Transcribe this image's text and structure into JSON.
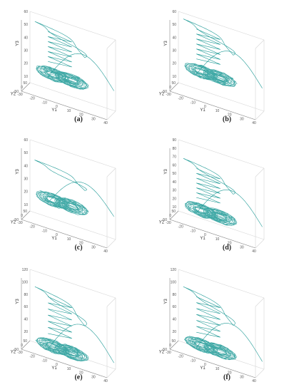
{
  "chart_data": [
    {
      "type": "line",
      "id": "a",
      "caption": "(a)",
      "xlabel": "Y1",
      "ylabel": "Y2",
      "zlabel": "Y3",
      "x_ticks": [
        "-30",
        "-20",
        "-10",
        "0",
        "10",
        "20",
        "30",
        "40"
      ],
      "y_ticks": [
        "-50",
        "0",
        "50"
      ],
      "z_ticks": [
        "10",
        "20",
        "30",
        "40",
        "50",
        "60"
      ],
      "zlim": [
        5,
        60
      ],
      "color": "#1f9a96",
      "series": [
        {
          "lobes": 2,
          "z_center": 22,
          "loop_top": 55
        }
      ]
    },
    {
      "type": "line",
      "id": "b",
      "caption": "(b)",
      "xlabel": "Y1",
      "ylabel": "Y2",
      "zlabel": "Y3",
      "x_ticks": [
        "-30",
        "-20",
        "-10",
        "0",
        "10",
        "20",
        "30",
        "40"
      ],
      "y_ticks": [
        "-50",
        "0",
        "50"
      ],
      "z_ticks": [
        "10",
        "20",
        "30",
        "40",
        "50",
        "60"
      ],
      "zlim": [
        5,
        60
      ],
      "color": "#1f9a96",
      "series": [
        {
          "lobes": 2,
          "z_center": 24,
          "loop_top": 57
        }
      ]
    },
    {
      "type": "line",
      "id": "c",
      "caption": "(c)",
      "xlabel": "Y1",
      "ylabel": "Y2",
      "zlabel": "Y3",
      "x_ticks": [
        "-30",
        "-20",
        "-10",
        "0",
        "10",
        "20",
        "30",
        "40"
      ],
      "y_ticks": [
        "-50",
        "0",
        "50"
      ],
      "z_ticks": [
        "10",
        "20",
        "30",
        "40",
        "50",
        "60"
      ],
      "zlim": [
        5,
        60
      ],
      "color": "#1f9a96",
      "series": [
        {
          "lobes": 2,
          "z_center": 24,
          "loop_top": 47
        }
      ]
    },
    {
      "type": "line",
      "id": "d",
      "caption": "(d)",
      "xlabel": "Y1",
      "ylabel": "Y2",
      "zlabel": "Y3",
      "x_ticks": [
        "-30",
        "-20",
        "-10",
        "0",
        "10",
        "20",
        "30",
        "40"
      ],
      "y_ticks": [
        "-50",
        "0",
        "50"
      ],
      "z_ticks": [
        "10",
        "20",
        "30",
        "40",
        "50",
        "60",
        "70",
        "80",
        "90"
      ],
      "zlim": [
        5,
        90
      ],
      "color": "#1f9a96",
      "series": [
        {
          "lobes": 2,
          "z_center": 22,
          "loop_top": 72
        }
      ]
    },
    {
      "type": "line",
      "id": "e",
      "caption": "(e)",
      "xlabel": "Y1",
      "ylabel": "Y2",
      "zlabel": "Y3",
      "x_ticks": [
        "-30",
        "-20",
        "-10",
        "0",
        "10",
        "20",
        "30",
        "40"
      ],
      "y_ticks": [
        "-50",
        "0",
        "50"
      ],
      "z_ticks": [
        "20",
        "40",
        "60",
        "80",
        "100",
        "120"
      ],
      "zlim": [
        5,
        120
      ],
      "color": "#1f9a96",
      "series": [
        {
          "lobes": 2,
          "z_center": 18,
          "loop_top": 98
        }
      ]
    },
    {
      "type": "line",
      "id": "f",
      "caption": "(f)",
      "xlabel": "Y1",
      "ylabel": "Y2",
      "zlabel": "Y3",
      "x_ticks": [
        "-30",
        "-20",
        "-10",
        "0",
        "10",
        "20",
        "30",
        "40"
      ],
      "y_ticks": [
        "-50",
        "0",
        "50"
      ],
      "z_ticks": [
        "20",
        "40",
        "60",
        "80",
        "100",
        "120"
      ],
      "zlim": [
        5,
        120
      ],
      "color": "#1f9a96",
      "series": [
        {
          "lobes": 2,
          "z_center": 20,
          "loop_top": 98
        }
      ]
    }
  ]
}
